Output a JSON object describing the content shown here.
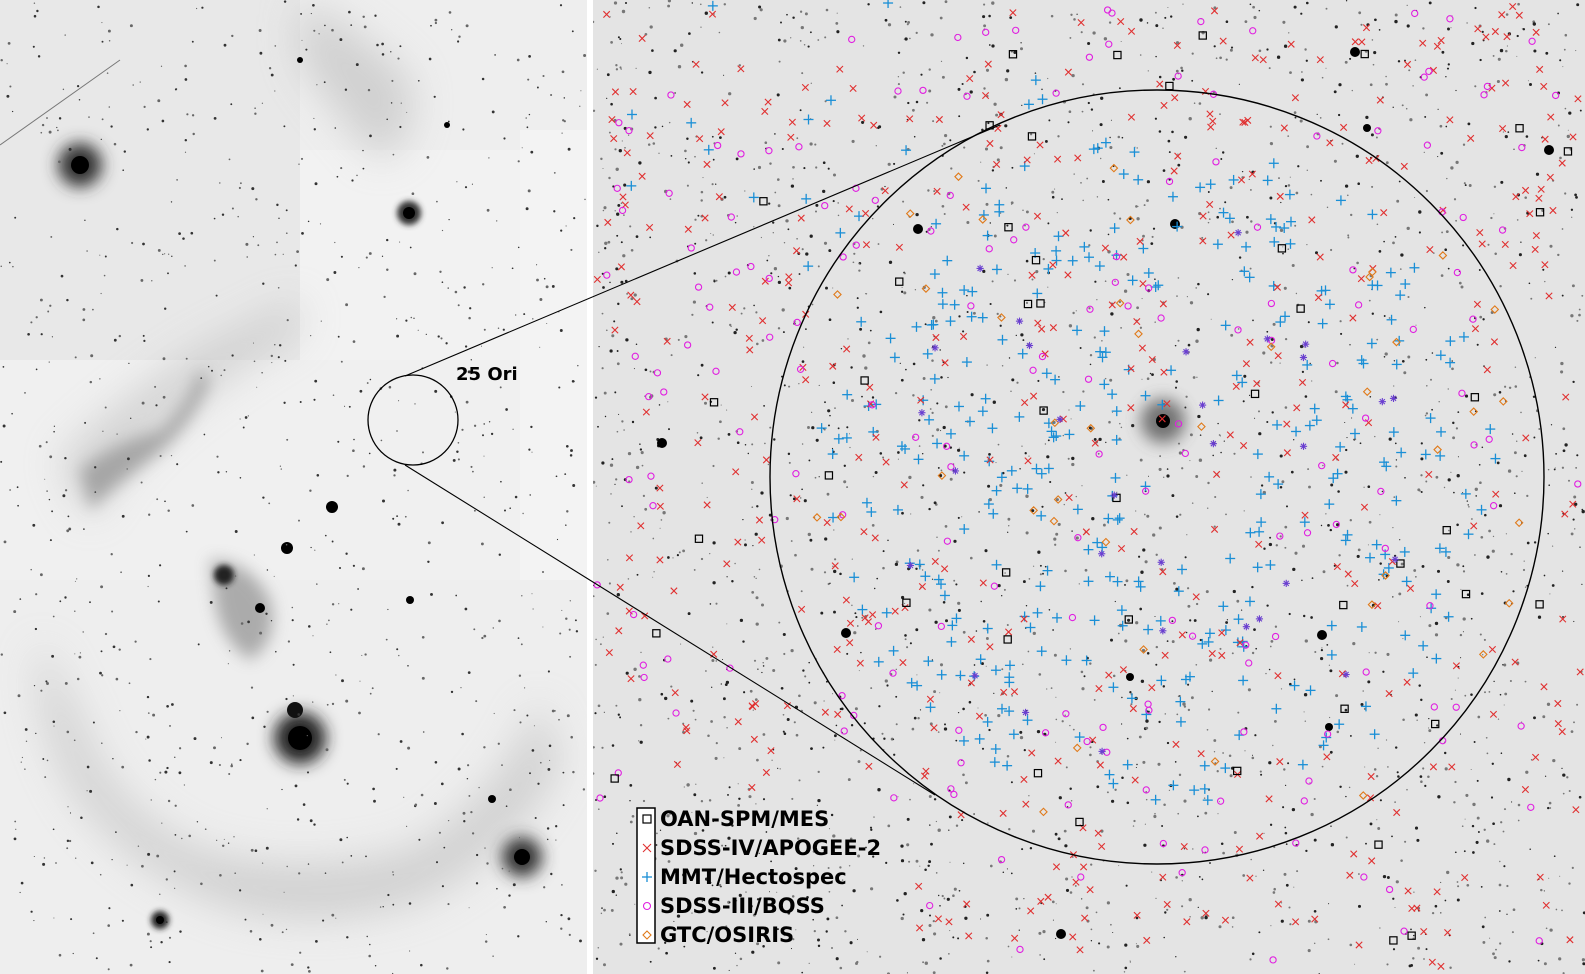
{
  "left_panel": {
    "region_label": "25 Ori"
  },
  "legend": {
    "items": [
      {
        "label": "OAN-SPM/MES",
        "marker": "square",
        "color": "#000000"
      },
      {
        "label": "SDSS-IV/APOGEE-2",
        "marker": "x",
        "color": "#e03030"
      },
      {
        "label": "MMT/Hectospec",
        "marker": "plus",
        "color": "#1a8fd6"
      },
      {
        "label": "SDSS-III/BOSS",
        "marker": "circle",
        "color": "#e020e0"
      },
      {
        "label": "GTC/OSIRIS",
        "marker": "diamond",
        "color": "#e07a1a"
      }
    ]
  },
  "marker_colors": {
    "square": "#000000",
    "x": "#e03030",
    "plus": "#1a8fd6",
    "circle": "#e020e0",
    "diamond": "#e07a1a",
    "asterisk": "#6a3fd0"
  }
}
